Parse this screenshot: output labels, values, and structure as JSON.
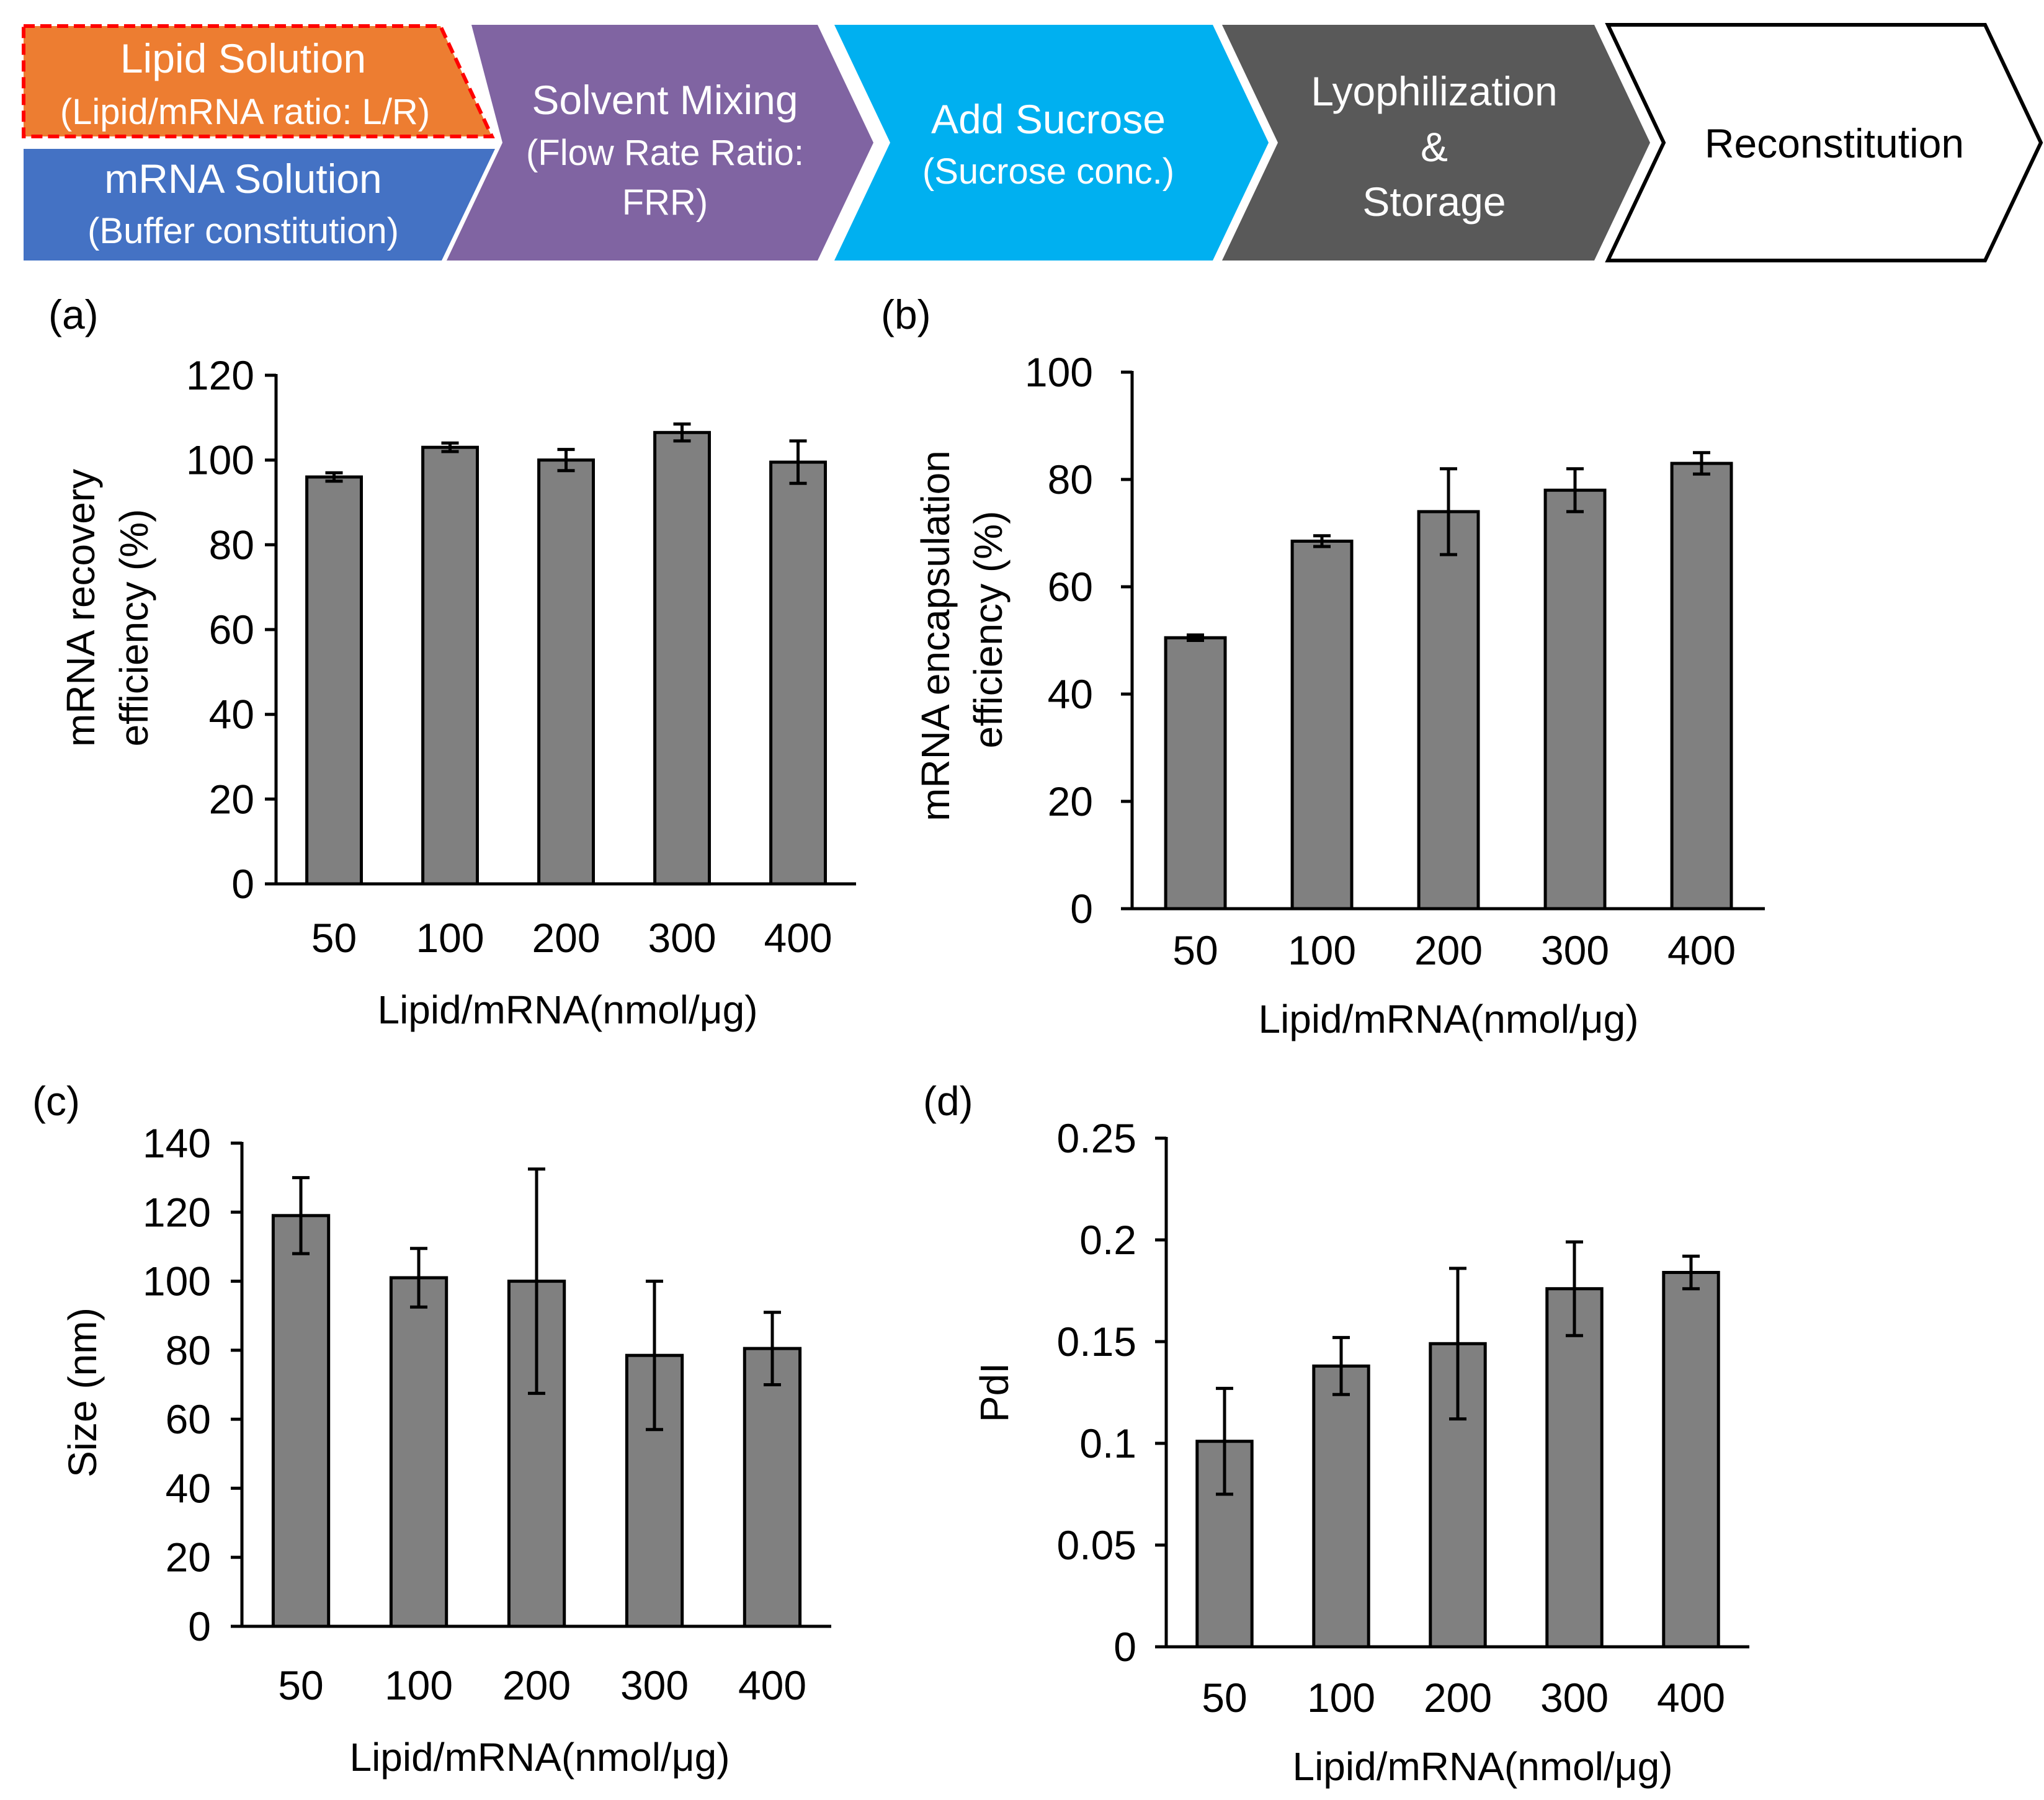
{
  "flow": {
    "steps": [
      {
        "id": "lipid-solution",
        "title": "Lipid Solution",
        "subtitle": "(Lipid/mRNA  ratio: L/R)",
        "fill": "#ED7D31",
        "text_color": "#ffffff",
        "border": "#FF0000"
      },
      {
        "id": "mrna-solution",
        "title": "mRNA Solution",
        "subtitle": "(Buffer constitution)",
        "fill": "#4472C4",
        "text_color": "#ffffff"
      },
      {
        "id": "solvent-mixing",
        "title": "Solvent Mixing",
        "subtitle_line1": "(Flow Rate  Ratio:",
        "subtitle_line2": "FRR)",
        "fill": "#8064A2",
        "text_color": "#ffffff"
      },
      {
        "id": "add-sucrose",
        "title": "Add Sucrose",
        "subtitle": "(Sucrose conc.)",
        "fill": "#00B0F0",
        "text_color": "#ffffff"
      },
      {
        "id": "lyophilization",
        "line1": "Lyophilization",
        "line2": "&",
        "line3": "Storage",
        "fill": "#595959",
        "text_color": "#ffffff"
      },
      {
        "id": "reconstitution",
        "title": "Reconstitution",
        "fill": "#ffffff",
        "text_color": "#000000",
        "border": "#000000"
      }
    ]
  },
  "chart_data": [
    {
      "panel": "(a)",
      "type": "bar",
      "categories": [
        "50",
        "100",
        "200",
        "300",
        "400"
      ],
      "values": [
        96,
        103,
        100,
        106.5,
        99.5
      ],
      "errors": [
        1,
        1,
        2.5,
        2,
        5
      ],
      "xlabel": "Lipid/mRNA(nmol/μg)",
      "ylabel_line1": "mRNA recovery",
      "ylabel_line2": "efficiency (%)",
      "ylim": [
        0,
        120
      ],
      "yticks": [
        0,
        20,
        40,
        60,
        80,
        100,
        120
      ],
      "ytick_labels": [
        "0",
        "20",
        "40",
        "60",
        "80",
        "100",
        "120"
      ],
      "bar_color": "#808080",
      "grid": false
    },
    {
      "panel": "(b)",
      "type": "bar",
      "categories": [
        "50",
        "100",
        "200",
        "300",
        "400"
      ],
      "values": [
        50.5,
        68.5,
        74,
        78,
        83
      ],
      "errors": [
        0.5,
        1,
        8,
        4,
        2
      ],
      "xlabel": "Lipid/mRNA(nmol/μg)",
      "ylabel_line1": "mRNA encapsulation",
      "ylabel_line2": "efficiency (%)",
      "ylim": [
        0,
        100
      ],
      "yticks": [
        0,
        20,
        40,
        60,
        80,
        100
      ],
      "ytick_labels": [
        "0",
        "20",
        "40",
        "60",
        "80",
        "100"
      ],
      "bar_color": "#808080",
      "grid": false
    },
    {
      "panel": "(c)",
      "type": "bar",
      "categories": [
        "50",
        "100",
        "200",
        "300",
        "400"
      ],
      "values": [
        119,
        101,
        100,
        78.5,
        80.5
      ],
      "errors": [
        11,
        8.5,
        32.5,
        21.5,
        10.5
      ],
      "xlabel": "Lipid/mRNA(nmol/μg)",
      "ylabel": "Size (nm)",
      "ylim": [
        0,
        140
      ],
      "yticks": [
        0,
        20,
        40,
        60,
        80,
        100,
        120,
        140
      ],
      "ytick_labels": [
        "0",
        "20",
        "40",
        "60",
        "80",
        "100",
        "120",
        "140"
      ],
      "bar_color": "#808080",
      "grid": false
    },
    {
      "panel": "(d)",
      "type": "bar",
      "categories": [
        "50",
        "100",
        "200",
        "300",
        "400"
      ],
      "values": [
        0.101,
        0.138,
        0.149,
        0.176,
        0.184
      ],
      "errors": [
        0.026,
        0.014,
        0.037,
        0.023,
        0.008
      ],
      "xlabel": "Lipid/mRNA(nmol/μg)",
      "ylabel": "PdI",
      "ylim": [
        0,
        0.25
      ],
      "yticks": [
        0,
        0.05,
        0.1,
        0.15,
        0.2,
        0.25
      ],
      "ytick_labels": [
        "0",
        "0.05",
        "0.1",
        "0.15",
        "0.2",
        "0.25"
      ],
      "bar_color": "#808080",
      "grid": false
    }
  ]
}
